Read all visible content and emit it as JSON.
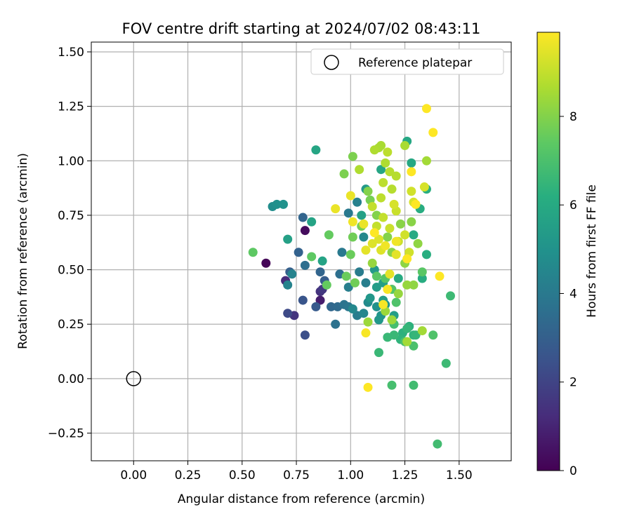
{
  "chart_data": {
    "type": "scatter",
    "title": "FOV centre drift starting at 2024/07/02 08:43:11",
    "xlabel": "Angular distance from reference (arcmin)",
    "ylabel": "Rotation from reference (arcmin)",
    "xlim": [
      -0.195,
      1.74
    ],
    "ylim": [
      -0.377,
      1.545
    ],
    "xticks": [
      "0.00",
      "0.25",
      "0.50",
      "0.75",
      "1.00",
      "1.25",
      "1.50"
    ],
    "yticks": [
      "−0.25",
      "0.00",
      "0.25",
      "0.50",
      "0.75",
      "1.00",
      "1.25",
      "1.50"
    ],
    "grid": true,
    "legend": {
      "placement": "top-right",
      "label": "Reference platepar"
    },
    "reference": {
      "x": 0.0,
      "y": 0.0
    },
    "colorbar": {
      "label": "Hours from first FF file",
      "range": [
        0,
        9.9
      ],
      "ticks": [
        "0",
        "2",
        "4",
        "6",
        "8"
      ],
      "colormap": "viridis"
    },
    "points": [
      {
        "x": 0.61,
        "y": 0.53,
        "h": 0.1
      },
      {
        "x": 0.79,
        "y": 0.68,
        "h": 0.3
      },
      {
        "x": 0.86,
        "y": 0.36,
        "h": 0.8
      },
      {
        "x": 0.7,
        "y": 0.45,
        "h": 1.2
      },
      {
        "x": 0.86,
        "y": 0.4,
        "h": 1.4
      },
      {
        "x": 0.74,
        "y": 0.29,
        "h": 1.5
      },
      {
        "x": 0.87,
        "y": 0.41,
        "h": 1.6
      },
      {
        "x": 0.71,
        "y": 0.3,
        "h": 2.2
      },
      {
        "x": 0.79,
        "y": 0.2,
        "h": 2.4
      },
      {
        "x": 0.78,
        "y": 0.36,
        "h": 2.6
      },
      {
        "x": 0.84,
        "y": 0.33,
        "h": 2.8
      },
      {
        "x": 0.88,
        "y": 0.45,
        "h": 2.9
      },
      {
        "x": 0.72,
        "y": 0.49,
        "h": 3.0
      },
      {
        "x": 0.76,
        "y": 0.58,
        "h": 3.1
      },
      {
        "x": 0.86,
        "y": 0.49,
        "h": 3.2
      },
      {
        "x": 0.78,
        "y": 0.74,
        "h": 3.2
      },
      {
        "x": 0.91,
        "y": 0.33,
        "h": 3.3
      },
      {
        "x": 0.94,
        "y": 0.33,
        "h": 3.4
      },
      {
        "x": 0.79,
        "y": 0.52,
        "h": 3.6
      },
      {
        "x": 0.95,
        "y": 0.48,
        "h": 3.6
      },
      {
        "x": 0.93,
        "y": 0.25,
        "h": 3.7
      },
      {
        "x": 0.97,
        "y": 0.34,
        "h": 3.8
      },
      {
        "x": 0.99,
        "y": 0.33,
        "h": 3.9
      },
      {
        "x": 0.96,
        "y": 0.58,
        "h": 4.0
      },
      {
        "x": 0.99,
        "y": 0.76,
        "h": 4.0
      },
      {
        "x": 1.03,
        "y": 0.29,
        "h": 4.1
      },
      {
        "x": 1.04,
        "y": 0.49,
        "h": 4.1
      },
      {
        "x": 0.99,
        "y": 0.42,
        "h": 4.2
      },
      {
        "x": 1.07,
        "y": 0.44,
        "h": 4.2
      },
      {
        "x": 1.03,
        "y": 0.81,
        "h": 4.3
      },
      {
        "x": 0.71,
        "y": 0.43,
        "h": 4.4
      },
      {
        "x": 0.73,
        "y": 0.48,
        "h": 4.4
      },
      {
        "x": 1.06,
        "y": 0.3,
        "h": 4.5
      },
      {
        "x": 1.01,
        "y": 0.32,
        "h": 4.6
      },
      {
        "x": 1.06,
        "y": 0.65,
        "h": 4.6
      },
      {
        "x": 1.08,
        "y": 0.35,
        "h": 4.7
      },
      {
        "x": 0.64,
        "y": 0.79,
        "h": 4.8
      },
      {
        "x": 0.66,
        "y": 0.8,
        "h": 4.9
      },
      {
        "x": 0.69,
        "y": 0.8,
        "h": 5.0
      },
      {
        "x": 1.12,
        "y": 0.33,
        "h": 5.0
      },
      {
        "x": 1.14,
        "y": 0.29,
        "h": 5.1
      },
      {
        "x": 1.16,
        "y": 0.34,
        "h": 5.1
      },
      {
        "x": 1.09,
        "y": 0.37,
        "h": 5.2
      },
      {
        "x": 1.13,
        "y": 0.27,
        "h": 5.2
      },
      {
        "x": 1.11,
        "y": 0.5,
        "h": 5.3
      },
      {
        "x": 1.07,
        "y": 0.87,
        "h": 5.3
      },
      {
        "x": 1.15,
        "y": 0.36,
        "h": 5.4
      },
      {
        "x": 1.12,
        "y": 0.42,
        "h": 5.4
      },
      {
        "x": 1.15,
        "y": 0.44,
        "h": 5.5
      },
      {
        "x": 1.2,
        "y": 0.29,
        "h": 5.5
      },
      {
        "x": 1.05,
        "y": 0.75,
        "h": 5.6
      },
      {
        "x": 0.71,
        "y": 0.64,
        "h": 5.6
      },
      {
        "x": 0.82,
        "y": 0.72,
        "h": 5.7
      },
      {
        "x": 0.87,
        "y": 0.54,
        "h": 5.7
      },
      {
        "x": 0.84,
        "y": 1.05,
        "h": 5.8
      },
      {
        "x": 1.14,
        "y": 0.96,
        "h": 5.8
      },
      {
        "x": 1.26,
        "y": 1.09,
        "h": 5.9
      },
      {
        "x": 1.28,
        "y": 0.99,
        "h": 5.9
      },
      {
        "x": 1.29,
        "y": 0.66,
        "h": 6.0
      },
      {
        "x": 1.22,
        "y": 0.46,
        "h": 6.0
      },
      {
        "x": 1.33,
        "y": 0.46,
        "h": 6.1
      },
      {
        "x": 1.32,
        "y": 0.78,
        "h": 6.1
      },
      {
        "x": 1.35,
        "y": 0.87,
        "h": 6.2
      },
      {
        "x": 1.35,
        "y": 0.57,
        "h": 6.2
      },
      {
        "x": 1.24,
        "y": 0.21,
        "h": 6.3
      },
      {
        "x": 1.27,
        "y": 0.24,
        "h": 6.3
      },
      {
        "x": 1.29,
        "y": 0.2,
        "h": 6.4
      },
      {
        "x": 1.23,
        "y": 0.18,
        "h": 6.4
      },
      {
        "x": 1.3,
        "y": 0.2,
        "h": 6.5
      },
      {
        "x": 1.26,
        "y": 0.23,
        "h": 6.5
      },
      {
        "x": 1.2,
        "y": 0.2,
        "h": 6.6
      },
      {
        "x": 1.17,
        "y": 0.19,
        "h": 6.6
      },
      {
        "x": 1.13,
        "y": 0.12,
        "h": 6.6
      },
      {
        "x": 1.44,
        "y": 0.07,
        "h": 6.7
      },
      {
        "x": 1.46,
        "y": 0.38,
        "h": 6.7
      },
      {
        "x": 1.4,
        "y": -0.3,
        "h": 6.8
      },
      {
        "x": 1.29,
        "y": -0.03,
        "h": 6.8
      },
      {
        "x": 1.19,
        "y": -0.03,
        "h": 6.9
      },
      {
        "x": 1.2,
        "y": 0.25,
        "h": 6.9
      },
      {
        "x": 1.25,
        "y": 0.17,
        "h": 7.0
      },
      {
        "x": 1.29,
        "y": 0.15,
        "h": 7.0
      },
      {
        "x": 1.38,
        "y": 0.2,
        "h": 7.1
      },
      {
        "x": 1.21,
        "y": 0.35,
        "h": 7.1
      },
      {
        "x": 1.19,
        "y": 0.41,
        "h": 7.2
      },
      {
        "x": 1.16,
        "y": 0.46,
        "h": 7.2
      },
      {
        "x": 1.12,
        "y": 0.47,
        "h": 7.3
      },
      {
        "x": 1.33,
        "y": 0.49,
        "h": 7.3
      },
      {
        "x": 0.55,
        "y": 0.58,
        "h": 7.4
      },
      {
        "x": 0.82,
        "y": 0.56,
        "h": 7.4
      },
      {
        "x": 0.89,
        "y": 0.43,
        "h": 7.5
      },
      {
        "x": 0.9,
        "y": 0.66,
        "h": 7.5
      },
      {
        "x": 0.98,
        "y": 0.47,
        "h": 7.6
      },
      {
        "x": 1.0,
        "y": 0.57,
        "h": 7.6
      },
      {
        "x": 1.02,
        "y": 0.44,
        "h": 7.7
      },
      {
        "x": 1.01,
        "y": 0.65,
        "h": 7.7
      },
      {
        "x": 1.05,
        "y": 0.7,
        "h": 7.8
      },
      {
        "x": 1.09,
        "y": 0.82,
        "h": 7.8
      },
      {
        "x": 1.01,
        "y": 1.02,
        "h": 7.9
      },
      {
        "x": 0.97,
        "y": 0.94,
        "h": 7.9
      },
      {
        "x": 1.08,
        "y": 0.86,
        "h": 8.0
      },
      {
        "x": 1.12,
        "y": 0.75,
        "h": 8.0
      },
      {
        "x": 1.17,
        "y": 0.65,
        "h": 8.0
      },
      {
        "x": 1.19,
        "y": 0.58,
        "h": 8.1
      },
      {
        "x": 1.23,
        "y": 0.71,
        "h": 8.1
      },
      {
        "x": 1.28,
        "y": 0.72,
        "h": 8.1
      },
      {
        "x": 1.31,
        "y": 0.62,
        "h": 8.2
      },
      {
        "x": 1.25,
        "y": 0.53,
        "h": 8.2
      },
      {
        "x": 1.29,
        "y": 0.43,
        "h": 8.2
      },
      {
        "x": 1.26,
        "y": 0.43,
        "h": 8.3
      },
      {
        "x": 1.22,
        "y": 0.39,
        "h": 8.3
      },
      {
        "x": 1.1,
        "y": 0.53,
        "h": 8.3
      },
      {
        "x": 1.08,
        "y": 0.26,
        "h": 8.4
      },
      {
        "x": 1.16,
        "y": 0.31,
        "h": 8.4
      },
      {
        "x": 1.19,
        "y": 0.27,
        "h": 8.4
      },
      {
        "x": 1.26,
        "y": 0.17,
        "h": 8.5
      },
      {
        "x": 1.33,
        "y": 0.22,
        "h": 8.5
      },
      {
        "x": 1.35,
        "y": 1.0,
        "h": 8.5
      },
      {
        "x": 1.25,
        "y": 1.07,
        "h": 8.6
      },
      {
        "x": 1.14,
        "y": 1.07,
        "h": 8.6
      },
      {
        "x": 1.13,
        "y": 1.06,
        "h": 8.6
      },
      {
        "x": 1.11,
        "y": 1.05,
        "h": 8.7
      },
      {
        "x": 1.04,
        "y": 0.96,
        "h": 8.7
      },
      {
        "x": 1.16,
        "y": 0.99,
        "h": 8.7
      },
      {
        "x": 1.18,
        "y": 0.95,
        "h": 8.8
      },
      {
        "x": 1.19,
        "y": 0.87,
        "h": 8.8
      },
      {
        "x": 1.21,
        "y": 0.93,
        "h": 8.8
      },
      {
        "x": 1.17,
        "y": 1.04,
        "h": 8.9
      },
      {
        "x": 1.15,
        "y": 0.9,
        "h": 8.9
      },
      {
        "x": 1.14,
        "y": 0.83,
        "h": 8.9
      },
      {
        "x": 1.1,
        "y": 0.79,
        "h": 9.0
      },
      {
        "x": 1.12,
        "y": 0.7,
        "h": 9.0
      },
      {
        "x": 1.15,
        "y": 0.74,
        "h": 9.0
      },
      {
        "x": 1.18,
        "y": 0.69,
        "h": 9.1
      },
      {
        "x": 1.21,
        "y": 0.77,
        "h": 9.1
      },
      {
        "x": 1.22,
        "y": 0.63,
        "h": 9.1
      },
      {
        "x": 1.27,
        "y": 0.58,
        "h": 9.2
      },
      {
        "x": 1.25,
        "y": 0.66,
        "h": 9.2
      },
      {
        "x": 1.28,
        "y": 0.86,
        "h": 9.2
      },
      {
        "x": 1.34,
        "y": 0.88,
        "h": 9.3
      },
      {
        "x": 1.29,
        "y": 0.81,
        "h": 9.3
      },
      {
        "x": 1.2,
        "y": 0.8,
        "h": 9.3
      },
      {
        "x": 1.13,
        "y": 0.64,
        "h": 9.4
      },
      {
        "x": 1.1,
        "y": 0.62,
        "h": 9.4
      },
      {
        "x": 1.14,
        "y": 0.59,
        "h": 9.4
      },
      {
        "x": 1.18,
        "y": 0.48,
        "h": 9.5
      },
      {
        "x": 1.21,
        "y": 0.57,
        "h": 9.5
      },
      {
        "x": 1.07,
        "y": 0.59,
        "h": 9.5
      },
      {
        "x": 1.06,
        "y": 0.71,
        "h": 9.6
      },
      {
        "x": 1.0,
        "y": 0.84,
        "h": 9.6
      },
      {
        "x": 0.93,
        "y": 0.78,
        "h": 9.6
      },
      {
        "x": 1.01,
        "y": 0.72,
        "h": 9.7
      },
      {
        "x": 1.16,
        "y": 0.61,
        "h": 9.7
      },
      {
        "x": 1.21,
        "y": 0.63,
        "h": 9.7
      },
      {
        "x": 1.17,
        "y": 0.41,
        "h": 9.8
      },
      {
        "x": 1.15,
        "y": 0.34,
        "h": 9.8
      },
      {
        "x": 1.07,
        "y": 0.21,
        "h": 9.8
      },
      {
        "x": 1.08,
        "y": -0.04,
        "h": 9.9
      },
      {
        "x": 1.41,
        "y": 0.47,
        "h": 9.9
      },
      {
        "x": 1.38,
        "y": 1.13,
        "h": 9.9
      },
      {
        "x": 1.35,
        "y": 1.24,
        "h": 9.9
      },
      {
        "x": 1.28,
        "y": 0.95,
        "h": 9.9
      },
      {
        "x": 1.11,
        "y": 0.67,
        "h": 9.9
      },
      {
        "x": 1.3,
        "y": 0.8,
        "h": 9.9
      },
      {
        "x": 1.26,
        "y": 0.55,
        "h": 9.9
      }
    ]
  }
}
